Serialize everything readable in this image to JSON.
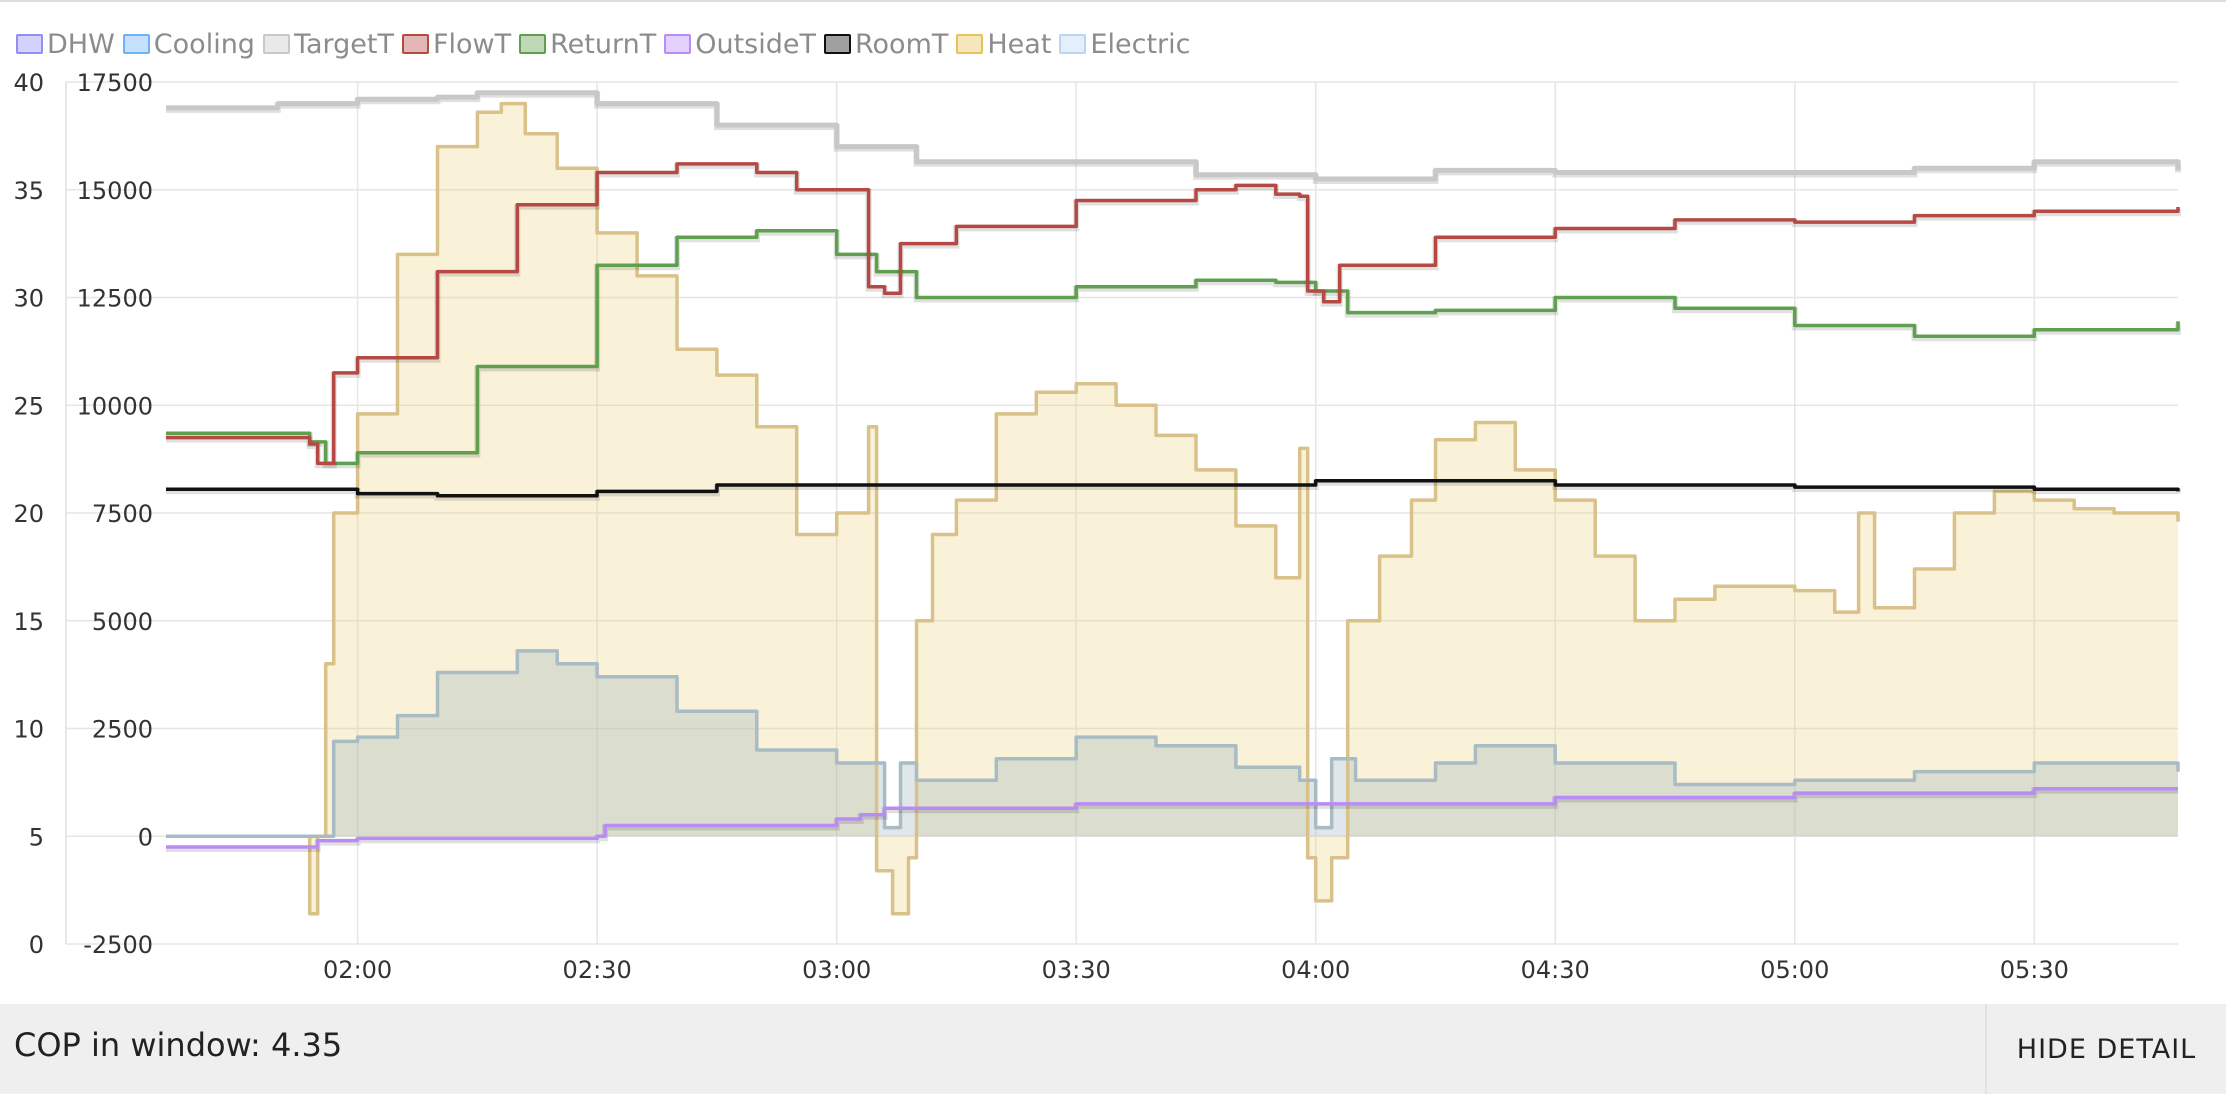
{
  "legend": [
    {
      "label": "DHW",
      "color": "#8f8ff7"
    },
    {
      "label": "Cooling",
      "color": "#6fb3f7"
    },
    {
      "label": "TargetT",
      "color": "#c8c8c8"
    },
    {
      "label": "FlowT",
      "color": "#b54a45"
    },
    {
      "label": "ReturnT",
      "color": "#5ea04e"
    },
    {
      "label": "OutsideT",
      "color": "#b98cf5"
    },
    {
      "label": "RoomT",
      "color": "#111111"
    },
    {
      "label": "Heat",
      "color": "#e6c356"
    },
    {
      "label": "Electric",
      "color": "#b8d6f2"
    }
  ],
  "footer": {
    "cop_text": "COP in window: 4.35",
    "hide_label": "HIDE DETAIL"
  },
  "chart_data": {
    "type": "line",
    "x_axis": {
      "unit": "time",
      "range": [
        "01:36",
        "05:48"
      ],
      "ticks": [
        "02:00",
        "02:30",
        "03:00",
        "03:30",
        "04:00",
        "04:30",
        "05:00",
        "05:30"
      ]
    },
    "y_left": {
      "label": "",
      "range": [
        0,
        40
      ],
      "ticks": [
        0,
        5,
        10,
        15,
        20,
        25,
        30,
        35,
        40
      ]
    },
    "y_right": {
      "label": "",
      "range": [
        -2500,
        17500
      ],
      "ticks": [
        -2500,
        0,
        2500,
        5000,
        7500,
        10000,
        12500,
        15000,
        17500
      ]
    },
    "grid": true,
    "legend_position": "top-left",
    "series": [
      {
        "name": "TargetT",
        "axis": "left",
        "color": "#c8c8c8",
        "points": [
          [
            "01:36",
            38.8
          ],
          [
            "01:50",
            39.0
          ],
          [
            "02:00",
            39.2
          ],
          [
            "02:10",
            39.3
          ],
          [
            "02:15",
            39.5
          ],
          [
            "02:30",
            39.0
          ],
          [
            "02:45",
            38.0
          ],
          [
            "03:00",
            37.0
          ],
          [
            "03:10",
            36.3
          ],
          [
            "03:30",
            36.3
          ],
          [
            "03:45",
            35.7
          ],
          [
            "04:00",
            35.5
          ],
          [
            "04:15",
            35.9
          ],
          [
            "04:30",
            35.8
          ],
          [
            "05:00",
            35.8
          ],
          [
            "05:15",
            36.0
          ],
          [
            "05:30",
            36.3
          ],
          [
            "05:48",
            35.9
          ]
        ]
      },
      {
        "name": "FlowT",
        "axis": "left",
        "color": "#b54a45",
        "points": [
          [
            "01:36",
            23.5
          ],
          [
            "01:54",
            23.2
          ],
          [
            "01:55",
            22.3
          ],
          [
            "01:57",
            26.5
          ],
          [
            "02:00",
            27.2
          ],
          [
            "02:10",
            31.2
          ],
          [
            "02:20",
            34.3
          ],
          [
            "02:30",
            35.8
          ],
          [
            "02:40",
            36.2
          ],
          [
            "02:50",
            35.8
          ],
          [
            "02:55",
            35.0
          ],
          [
            "03:00",
            35.0
          ],
          [
            "03:02",
            35.0
          ],
          [
            "03:04",
            30.5
          ],
          [
            "03:06",
            30.2
          ],
          [
            "03:08",
            32.5
          ],
          [
            "03:15",
            33.3
          ],
          [
            "03:30",
            34.5
          ],
          [
            "03:45",
            35.0
          ],
          [
            "03:50",
            35.2
          ],
          [
            "03:55",
            34.8
          ],
          [
            "03:58",
            34.7
          ],
          [
            "03:59",
            30.3
          ],
          [
            "04:01",
            29.8
          ],
          [
            "04:03",
            31.5
          ],
          [
            "04:15",
            32.8
          ],
          [
            "04:30",
            33.2
          ],
          [
            "04:45",
            33.6
          ],
          [
            "05:00",
            33.5
          ],
          [
            "05:15",
            33.8
          ],
          [
            "05:30",
            34.0
          ],
          [
            "05:48",
            34.2
          ]
        ]
      },
      {
        "name": "ReturnT",
        "axis": "left",
        "color": "#5ea04e",
        "points": [
          [
            "01:36",
            23.7
          ],
          [
            "01:54",
            23.3
          ],
          [
            "01:56",
            22.3
          ],
          [
            "02:00",
            22.8
          ],
          [
            "02:15",
            26.8
          ],
          [
            "02:30",
            31.5
          ],
          [
            "02:40",
            32.8
          ],
          [
            "02:50",
            33.1
          ],
          [
            "03:00",
            32.0
          ],
          [
            "03:05",
            31.2
          ],
          [
            "03:10",
            30.0
          ],
          [
            "03:20",
            30.0
          ],
          [
            "03:30",
            30.5
          ],
          [
            "03:45",
            30.8
          ],
          [
            "03:55",
            30.7
          ],
          [
            "04:00",
            30.3
          ],
          [
            "04:04",
            29.3
          ],
          [
            "04:15",
            29.4
          ],
          [
            "04:30",
            30.0
          ],
          [
            "04:45",
            29.5
          ],
          [
            "05:00",
            28.7
          ],
          [
            "05:15",
            28.2
          ],
          [
            "05:30",
            28.5
          ],
          [
            "05:48",
            28.9
          ]
        ]
      },
      {
        "name": "RoomT",
        "axis": "left",
        "color": "#111111",
        "points": [
          [
            "01:36",
            21.1
          ],
          [
            "02:00",
            20.9
          ],
          [
            "02:10",
            20.8
          ],
          [
            "02:30",
            21.0
          ],
          [
            "02:45",
            21.3
          ],
          [
            "03:00",
            21.3
          ],
          [
            "03:30",
            21.3
          ],
          [
            "04:00",
            21.5
          ],
          [
            "04:30",
            21.3
          ],
          [
            "05:00",
            21.2
          ],
          [
            "05:30",
            21.1
          ],
          [
            "05:48",
            21.0
          ]
        ]
      },
      {
        "name": "OutsideT",
        "axis": "left",
        "color": "#b98cf5",
        "points": [
          [
            "01:36",
            4.5
          ],
          [
            "01:55",
            4.8
          ],
          [
            "02:00",
            4.9
          ],
          [
            "02:30",
            5.0
          ],
          [
            "02:31",
            5.5
          ],
          [
            "03:00",
            5.8
          ],
          [
            "03:03",
            6.0
          ],
          [
            "03:06",
            6.3
          ],
          [
            "03:30",
            6.5
          ],
          [
            "04:00",
            6.5
          ],
          [
            "04:30",
            6.8
          ],
          [
            "05:00",
            7.0
          ],
          [
            "05:30",
            7.2
          ],
          [
            "05:48",
            7.2
          ]
        ]
      },
      {
        "name": "Heat",
        "axis": "right",
        "color": "#e6c356",
        "points": [
          [
            "01:36",
            0
          ],
          [
            "01:53",
            0
          ],
          [
            "01:54",
            -1800
          ],
          [
            "01:55",
            0
          ],
          [
            "01:56",
            4000
          ],
          [
            "01:57",
            7500
          ],
          [
            "02:00",
            9800
          ],
          [
            "02:05",
            13500
          ],
          [
            "02:10",
            16000
          ],
          [
            "02:15",
            16800
          ],
          [
            "02:18",
            17000
          ],
          [
            "02:21",
            16300
          ],
          [
            "02:25",
            15500
          ],
          [
            "02:30",
            14000
          ],
          [
            "02:35",
            13000
          ],
          [
            "02:40",
            11300
          ],
          [
            "02:45",
            10700
          ],
          [
            "02:50",
            9500
          ],
          [
            "02:55",
            7000
          ],
          [
            "03:00",
            7500
          ],
          [
            "03:02",
            7500
          ],
          [
            "03:04",
            9500
          ],
          [
            "03:05",
            -800
          ],
          [
            "03:07",
            -1800
          ],
          [
            "03:09",
            -500
          ],
          [
            "03:10",
            5000
          ],
          [
            "03:12",
            7000
          ],
          [
            "03:15",
            7800
          ],
          [
            "03:20",
            9800
          ],
          [
            "03:25",
            10300
          ],
          [
            "03:30",
            10500
          ],
          [
            "03:35",
            10000
          ],
          [
            "03:40",
            9300
          ],
          [
            "03:45",
            8500
          ],
          [
            "03:50",
            7200
          ],
          [
            "03:55",
            6000
          ],
          [
            "03:58",
            9000
          ],
          [
            "03:59",
            -500
          ],
          [
            "04:00",
            -1500
          ],
          [
            "04:02",
            -500
          ],
          [
            "04:04",
            5000
          ],
          [
            "04:08",
            6500
          ],
          [
            "04:12",
            7800
          ],
          [
            "04:15",
            9200
          ],
          [
            "04:20",
            9600
          ],
          [
            "04:25",
            8500
          ],
          [
            "04:30",
            7800
          ],
          [
            "04:35",
            6500
          ],
          [
            "04:40",
            5000
          ],
          [
            "04:45",
            5500
          ],
          [
            "04:50",
            5800
          ],
          [
            "05:00",
            5700
          ],
          [
            "05:05",
            5200
          ],
          [
            "05:08",
            7500
          ],
          [
            "05:10",
            5300
          ],
          [
            "05:15",
            6200
          ],
          [
            "05:20",
            7500
          ],
          [
            "05:25",
            8000
          ],
          [
            "05:30",
            7800
          ],
          [
            "05:35",
            7600
          ],
          [
            "05:40",
            7500
          ],
          [
            "05:48",
            7300
          ]
        ]
      },
      {
        "name": "Electric",
        "axis": "right",
        "color": "#b8d6f2",
        "points": [
          [
            "01:36",
            0
          ],
          [
            "01:55",
            0
          ],
          [
            "01:57",
            2200
          ],
          [
            "02:00",
            2300
          ],
          [
            "02:05",
            2800
          ],
          [
            "02:10",
            3800
          ],
          [
            "02:20",
            4300
          ],
          [
            "02:25",
            4000
          ],
          [
            "02:30",
            3700
          ],
          [
            "02:40",
            2900
          ],
          [
            "02:50",
            2000
          ],
          [
            "03:00",
            1700
          ],
          [
            "03:05",
            1700
          ],
          [
            "03:06",
            200
          ],
          [
            "03:08",
            1700
          ],
          [
            "03:10",
            1300
          ],
          [
            "03:20",
            1800
          ],
          [
            "03:30",
            2300
          ],
          [
            "03:40",
            2100
          ],
          [
            "03:50",
            1600
          ],
          [
            "03:58",
            1300
          ],
          [
            "04:00",
            200
          ],
          [
            "04:02",
            1800
          ],
          [
            "04:05",
            1300
          ],
          [
            "04:15",
            1700
          ],
          [
            "04:20",
            2100
          ],
          [
            "04:30",
            1700
          ],
          [
            "04:45",
            1200
          ],
          [
            "05:00",
            1300
          ],
          [
            "05:15",
            1500
          ],
          [
            "05:30",
            1700
          ],
          [
            "05:48",
            1500
          ]
        ]
      }
    ]
  }
}
